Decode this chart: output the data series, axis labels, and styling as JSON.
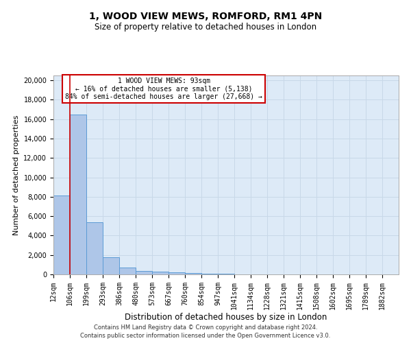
{
  "title": "1, WOOD VIEW MEWS, ROMFORD, RM1 4PN",
  "subtitle": "Size of property relative to detached houses in London",
  "xlabel": "Distribution of detached houses by size in London",
  "ylabel": "Number of detached properties",
  "categories": [
    "12sqm",
    "106sqm",
    "199sqm",
    "293sqm",
    "386sqm",
    "480sqm",
    "573sqm",
    "667sqm",
    "760sqm",
    "854sqm",
    "947sqm",
    "1041sqm",
    "1134sqm",
    "1228sqm",
    "1321sqm",
    "1415sqm",
    "1508sqm",
    "1602sqm",
    "1695sqm",
    "1789sqm",
    "1882sqm"
  ],
  "values": [
    8100,
    16500,
    5400,
    1750,
    700,
    350,
    250,
    200,
    150,
    80,
    50,
    30,
    20,
    15,
    10,
    8,
    6,
    5,
    4,
    3,
    2
  ],
  "bar_color": "#aec6e8",
  "bar_edge_color": "#5b9bd5",
  "annotation_text": "1 WOOD VIEW MEWS: 93sqm\n← 16% of detached houses are smaller (5,138)\n84% of semi-detached houses are larger (27,668) →",
  "annotation_box_color": "#ffffff",
  "annotation_box_edge_color": "#cc0000",
  "property_line_color": "#cc0000",
  "ylim": [
    0,
    20500
  ],
  "yticks": [
    0,
    2000,
    4000,
    6000,
    8000,
    10000,
    12000,
    14000,
    16000,
    18000,
    20000
  ],
  "grid_color": "#c8d8e8",
  "background_color": "#ddeaf7",
  "footer_line1": "Contains HM Land Registry data © Crown copyright and database right 2024.",
  "footer_line2": "Contains public sector information licensed under the Open Government Licence v3.0.",
  "title_fontsize": 10,
  "subtitle_fontsize": 8.5,
  "ylabel_fontsize": 8,
  "xlabel_fontsize": 8.5,
  "tick_fontsize": 7,
  "footer_fontsize": 6
}
